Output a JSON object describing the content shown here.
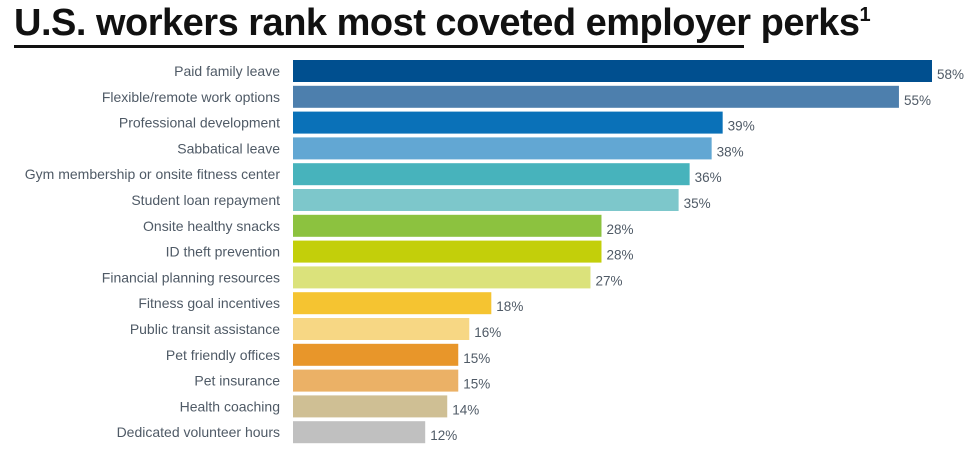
{
  "title": "U.S. workers rank most coveted employer perks",
  "title_footnote": "1",
  "chart_data": {
    "type": "bar",
    "orientation": "horizontal",
    "title": "U.S. workers rank most coveted employer perks",
    "xlabel": "",
    "ylabel": "",
    "xlim": [
      0,
      58
    ],
    "grid": false,
    "value_suffix": "%",
    "categories": [
      "Paid family leave",
      "Flexible/remote work options",
      "Professional development",
      "Sabbatical leave",
      "Gym membership or onsite fitness center",
      "Student loan repayment",
      "Onsite healthy snacks",
      "ID theft prevention",
      "Financial planning resources",
      "Fitness goal incentives",
      "Public transit assistance",
      "Pet friendly offices",
      "Pet insurance",
      "Health coaching",
      "Dedicated volunteer hours"
    ],
    "values": [
      58,
      55,
      39,
      38,
      36,
      35,
      28,
      28,
      27,
      18,
      16,
      15,
      15,
      14,
      12
    ],
    "value_labels": [
      "58%",
      "55%",
      "39%",
      "38%",
      "36%",
      "35%",
      "28%",
      "28%",
      "27%",
      "18%",
      "16%",
      "15%",
      "15%",
      "14%",
      "12%"
    ],
    "colors": [
      "#004f8f",
      "#4d7fad",
      "#0a71b8",
      "#62a7d3",
      "#47b3bc",
      "#7dc7cb",
      "#8cc23f",
      "#c3cf0a",
      "#dbe27b",
      "#f5c431",
      "#f7d784",
      "#e8962a",
      "#ebb166",
      "#cfbf94",
      "#c0c0c0"
    ]
  }
}
